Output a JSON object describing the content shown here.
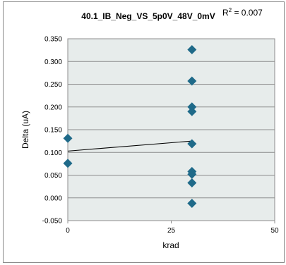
{
  "chart_data": {
    "type": "scatter",
    "title": "40.1_IB_Neg_VS_5p0V_48V_0mV",
    "xlabel": "krad",
    "ylabel": "Delta (uA)",
    "xlim": [
      0,
      50
    ],
    "ylim": [
      -0.05,
      0.35
    ],
    "x_ticks": [
      0,
      25,
      50
    ],
    "y_ticks": [
      -0.05,
      0.0,
      0.05,
      0.1,
      0.15,
      0.2,
      0.25,
      0.3,
      0.35
    ],
    "x_tick_labels": [
      "0",
      "25",
      "50"
    ],
    "y_tick_labels": [
      "-0.050",
      "0.000",
      "0.050",
      "0.100",
      "0.150",
      "0.200",
      "0.250",
      "0.300",
      "0.350"
    ],
    "grid": "horizontal",
    "legend": "none",
    "points": [
      {
        "x": 0,
        "y": 0.131
      },
      {
        "x": 0,
        "y": 0.076
      },
      {
        "x": 30,
        "y": 0.326
      },
      {
        "x": 30,
        "y": 0.257
      },
      {
        "x": 30,
        "y": 0.2
      },
      {
        "x": 30,
        "y": 0.19
      },
      {
        "x": 30,
        "y": 0.119
      },
      {
        "x": 30,
        "y": 0.058
      },
      {
        "x": 30,
        "y": 0.052
      },
      {
        "x": 30,
        "y": 0.033
      },
      {
        "x": 30,
        "y": -0.012
      }
    ],
    "trendline": {
      "type": "linear",
      "x": [
        0,
        30
      ],
      "y": [
        0.103,
        0.125
      ],
      "r2_label": "R",
      "r2_exponent": "2",
      "r2_value": " = 0.007"
    },
    "colors": {
      "marker": "#1f6a89",
      "plot_background": "#e7eceb",
      "gridline": "#8c8c8c",
      "trendline": "#000000"
    }
  }
}
